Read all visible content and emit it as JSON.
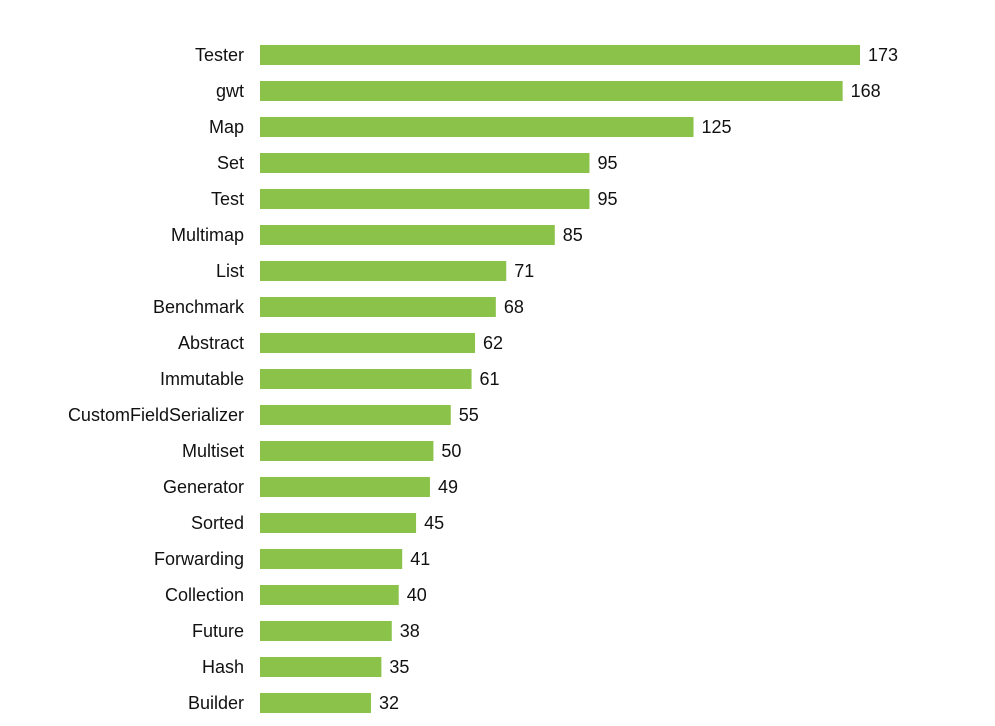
{
  "chart_data": {
    "type": "bar",
    "orientation": "horizontal",
    "categories": [
      "Tester",
      "gwt",
      "Map",
      "Set",
      "Test",
      "Multimap",
      "List",
      "Benchmark",
      "Abstract",
      "Immutable",
      "CustomFieldSerializer",
      "Multiset",
      "Generator",
      "Sorted",
      "Forwarding",
      "Collection",
      "Future",
      "Hash",
      "Builder"
    ],
    "values": [
      173,
      168,
      125,
      95,
      95,
      85,
      71,
      68,
      62,
      61,
      55,
      50,
      49,
      45,
      41,
      40,
      38,
      35,
      32
    ],
    "color": "#8bc34a"
  }
}
